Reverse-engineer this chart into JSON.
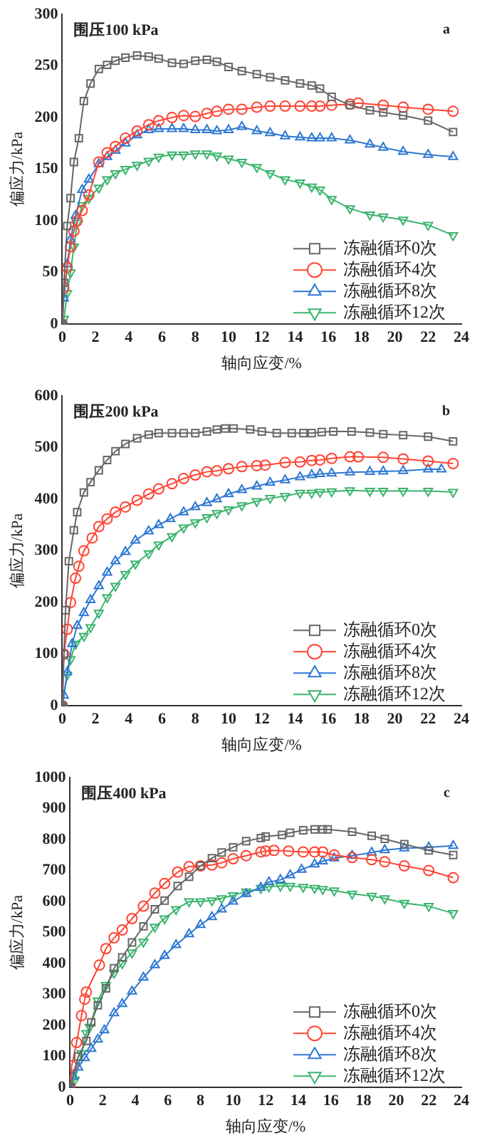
{
  "chart_data": [
    {
      "type": "line",
      "title": "围压100 kPa",
      "annotations": [
        "a"
      ],
      "xlabel": "轴向应变/%",
      "ylabel": "偏应力/kPa",
      "xlim": [
        0,
        24
      ],
      "xticks": [
        0,
        2,
        4,
        6,
        8,
        10,
        12,
        14,
        16,
        18,
        20,
        22,
        24
      ],
      "ylim": [
        0,
        300
      ],
      "yticks": [
        0,
        50,
        100,
        150,
        200,
        250,
        300
      ],
      "grid": false,
      "legend": "bottom right",
      "line_style": "solid",
      "series": [
        {
          "name": "冻融循环0次",
          "color": "#666666",
          "marker": "square",
          "x": [
            0,
            0.1,
            0.3,
            0.5,
            0.7,
            1.0,
            1.3,
            1.7,
            2.2,
            2.7,
            3.2,
            3.8,
            4.5,
            5.2,
            5.8,
            6.6,
            7.3,
            8.0,
            8.7,
            9.3,
            10,
            10.8,
            11.7,
            12.5,
            13.4,
            14.3,
            15.0,
            15.5,
            16.2,
            17.3,
            18.5,
            19.3,
            20.5,
            22,
            23.5
          ],
          "values": [
            0,
            40,
            95,
            122,
            157,
            180,
            216,
            233,
            247,
            251,
            255,
            258,
            260,
            259,
            257,
            253,
            252,
            255,
            256,
            254,
            249,
            245,
            242,
            239,
            236,
            233,
            231,
            228,
            220,
            212,
            207,
            205,
            202,
            197,
            186
          ]
        },
        {
          "name": "冻融循环4次",
          "color": "#ff4433",
          "marker": "circle",
          "x": [
            0,
            0.1,
            0.3,
            0.5,
            0.7,
            0.9,
            1.2,
            1.6,
            2.2,
            2.7,
            3.2,
            3.8,
            4.5,
            5.2,
            5.8,
            6.6,
            7.3,
            8.0,
            8.7,
            9.3,
            10,
            10.8,
            11.7,
            12.5,
            13.4,
            14.3,
            15.0,
            15.5,
            16.2,
            17.3,
            17.8,
            19.3,
            20.5,
            22,
            23.5
          ],
          "values": [
            0,
            35,
            55,
            75,
            90,
            100,
            110,
            125,
            157,
            166,
            172,
            180,
            187,
            193,
            197,
            200,
            202,
            201,
            204,
            206,
            208,
            208,
            210,
            211,
            211,
            211,
            211,
            211,
            212,
            213,
            214,
            212,
            210,
            208,
            206
          ]
        },
        {
          "name": "冻融循环8次",
          "color": "#2e78d2",
          "marker": "triangle",
          "x": [
            0,
            0.1,
            0.3,
            0.5,
            0.8,
            1.2,
            1.6,
            2.2,
            2.7,
            3.2,
            3.8,
            4.5,
            5.2,
            5.8,
            6.6,
            7.3,
            8.0,
            8.7,
            9.3,
            10,
            10.8,
            11.7,
            12.5,
            13.4,
            14.3,
            15.0,
            15.5,
            16.2,
            17.3,
            18.5,
            19.3,
            20.5,
            22,
            23.5
          ],
          "values": [
            0,
            25,
            58,
            82,
            105,
            130,
            140,
            155,
            162,
            168,
            175,
            183,
            188,
            189,
            189,
            189,
            188,
            188,
            187,
            188,
            191,
            187,
            185,
            182,
            181,
            180,
            180,
            180,
            178,
            174,
            171,
            167,
            164,
            162
          ]
        },
        {
          "name": "冻融循环12次",
          "color": "#3cb46e",
          "marker": "triangle-down",
          "x": [
            0,
            0.1,
            0.3,
            0.5,
            0.7,
            0.9,
            1.2,
            1.6,
            2.2,
            2.7,
            3.2,
            3.8,
            4.5,
            5.2,
            5.8,
            6.6,
            7.3,
            8.0,
            8.7,
            9.3,
            10,
            10.8,
            11.7,
            12.5,
            13.4,
            14.3,
            15.0,
            15.5,
            16.2,
            17.3,
            18.5,
            19.3,
            20.5,
            22,
            23.5
          ],
          "values": [
            0,
            5,
            30,
            50,
            75,
            98,
            115,
            122,
            132,
            140,
            146,
            150,
            154,
            158,
            162,
            164,
            164,
            165,
            165,
            163,
            160,
            157,
            152,
            146,
            140,
            137,
            133,
            130,
            121,
            112,
            106,
            104,
            101,
            96,
            86
          ]
        }
      ]
    },
    {
      "type": "line",
      "title": "围压200 kPa",
      "annotations": [
        "b"
      ],
      "xlabel": "轴向应变/%",
      "ylabel": "偏应力/kPa",
      "xlim": [
        0,
        24
      ],
      "xticks": [
        0,
        2,
        4,
        6,
        8,
        10,
        12,
        14,
        16,
        18,
        20,
        22,
        24
      ],
      "ylim": [
        0,
        600
      ],
      "yticks": [
        0,
        100,
        200,
        300,
        400,
        500,
        600
      ],
      "grid": false,
      "legend": "bottom right",
      "line_style": "solid",
      "series": [
        {
          "name": "冻融循环0次",
          "color": "#666666",
          "marker": "square",
          "x": [
            0,
            0.1,
            0.2,
            0.4,
            0.7,
            0.9,
            1.3,
            1.7,
            2.2,
            2.7,
            3.2,
            3.8,
            4.5,
            5.2,
            5.8,
            6.6,
            7.3,
            8.0,
            8.7,
            9.3,
            9.8,
            10.3,
            11.3,
            12,
            12.9,
            13.8,
            14.5,
            15,
            15.6,
            16.3,
            17.4,
            18.5,
            19.3,
            20.5,
            22,
            23.5
          ],
          "values": [
            0,
            100,
            185,
            280,
            340,
            375,
            413,
            433,
            456,
            476,
            493,
            507,
            518,
            525,
            528,
            528,
            528,
            528,
            531,
            535,
            537,
            537,
            535,
            531,
            528,
            528,
            528,
            528,
            530,
            531,
            531,
            529,
            526,
            524,
            521,
            512
          ]
        },
        {
          "name": "冻融循环4次",
          "color": "#ff4433",
          "marker": "circle",
          "x": [
            0,
            0.1,
            0.3,
            0.5,
            0.8,
            1.0,
            1.3,
            1.8,
            2.2,
            2.7,
            3.2,
            3.8,
            4.5,
            5.2,
            5.8,
            6.6,
            7.3,
            8.0,
            8.7,
            9.3,
            10,
            10.8,
            11.7,
            12.2,
            13.4,
            14.3,
            15.0,
            15.5,
            16.2,
            17.3,
            17.8,
            19.3,
            20.5,
            22,
            23.5
          ],
          "values": [
            0,
            100,
            148,
            200,
            247,
            270,
            300,
            325,
            347,
            362,
            375,
            385,
            398,
            410,
            420,
            430,
            440,
            447,
            453,
            455,
            459,
            463,
            465,
            466,
            471,
            472,
            475,
            476,
            479,
            482,
            482,
            481,
            478,
            474,
            469
          ]
        },
        {
          "name": "冻融循环8次",
          "color": "#2e78d2",
          "marker": "triangle",
          "x": [
            0,
            0.1,
            0.3,
            0.6,
            0.9,
            1.3,
            1.7,
            2.2,
            2.7,
            3.2,
            3.8,
            4.4,
            5.2,
            5.8,
            6.5,
            7.3,
            8.0,
            8.7,
            9.3,
            10,
            10.8,
            11.7,
            12.5,
            13.4,
            14.3,
            15.0,
            15.5,
            16.2,
            17.3,
            18.5,
            19.3,
            20.5,
            22,
            22.8
          ],
          "values": [
            0,
            20,
            65,
            120,
            155,
            180,
            205,
            232,
            258,
            280,
            298,
            320,
            338,
            350,
            362,
            375,
            385,
            393,
            400,
            410,
            418,
            425,
            432,
            437,
            443,
            447,
            449,
            450,
            452,
            453,
            454,
            455,
            458,
            458
          ]
        },
        {
          "name": "冻融循环12次",
          "color": "#3cb46e",
          "marker": "triangle-down",
          "x": [
            0,
            0.1,
            0.3,
            0.5,
            0.8,
            1.3,
            1.7,
            2.2,
            2.7,
            3.2,
            3.8,
            4.4,
            5.2,
            5.8,
            6.6,
            7.3,
            8.0,
            8.7,
            9.3,
            10,
            10.8,
            11.7,
            12.5,
            13.4,
            14.3,
            15.0,
            15.5,
            16.2,
            17.3,
            18.5,
            19.3,
            20.5,
            22,
            23.5
          ],
          "values": [
            0,
            null,
            60,
            90,
            120,
            135,
            152,
            180,
            210,
            232,
            255,
            275,
            295,
            312,
            328,
            345,
            355,
            365,
            373,
            380,
            388,
            396,
            402,
            406,
            412,
            412,
            414,
            415,
            417,
            416,
            416,
            416,
            416,
            414
          ]
        }
      ]
    },
    {
      "type": "line",
      "title": "围压400 kPa",
      "annotations": [
        "c"
      ],
      "xlabel": "轴向应变/%",
      "ylabel": "偏应力/kPa",
      "xlim": [
        0,
        24
      ],
      "xticks": [
        0,
        2,
        4,
        6,
        8,
        10,
        12,
        14,
        16,
        18,
        20,
        22,
        24
      ],
      "ylim": [
        0,
        1000
      ],
      "yticks": [
        0,
        100,
        200,
        300,
        400,
        500,
        600,
        700,
        800,
        900,
        1000
      ],
      "grid": false,
      "legend": "bottom right",
      "line_style": "solid",
      "series": [
        {
          "name": "冻融循环0次",
          "color": "#666666",
          "marker": "square",
          "x": [
            0,
            0.5,
            1.0,
            1.3,
            1.7,
            2.2,
            2.7,
            3.2,
            3.8,
            4.5,
            5.2,
            5.8,
            6.6,
            7.3,
            8.0,
            8.7,
            9.3,
            10,
            10.8,
            11.7,
            12.0,
            13.0,
            13.5,
            14.3,
            15.0,
            15.5,
            15.8,
            17.3,
            18.5,
            19.3,
            20.5,
            22,
            23.5
          ],
          "values": [
            0,
            100,
            150,
            210,
            265,
            320,
            385,
            420,
            468,
            520,
            575,
            603,
            650,
            680,
            715,
            740,
            758,
            775,
            795,
            805,
            810,
            815,
            822,
            830,
            833,
            833,
            833,
            825,
            812,
            802,
            785,
            765,
            750
          ]
        },
        {
          "name": "冻融循环4次",
          "color": "#ff4433",
          "marker": "circle",
          "x": [
            0,
            0.1,
            0.4,
            0.7,
            0.9,
            1.0,
            1.8,
            2.2,
            2.7,
            3.2,
            3.8,
            4.5,
            5.2,
            5.8,
            6.6,
            7.3,
            8.0,
            8.7,
            9.3,
            10,
            10.8,
            11.7,
            12,
            12.5,
            13.4,
            14.3,
            15,
            15.5,
            16.2,
            17.3,
            18.5,
            19.3,
            20.5,
            22,
            23.5
          ],
          "values": [
            0,
            70,
            145,
            232,
            285,
            308,
            395,
            448,
            483,
            508,
            545,
            585,
            627,
            658,
            695,
            713,
            715,
            718,
            725,
            738,
            748,
            760,
            763,
            765,
            763,
            760,
            760,
            760,
            750,
            742,
            735,
            728,
            715,
            700,
            677
          ]
        },
        {
          "name": "冻融循环8次",
          "color": "#2e78d2",
          "marker": "triangle",
          "x": [
            0,
            0.2,
            0.5,
            0.9,
            1.3,
            1.7,
            2.1,
            2.7,
            3.2,
            3.8,
            4.5,
            5.2,
            5.8,
            6.5,
            7.3,
            8.0,
            8.7,
            9.3,
            10,
            10.8,
            11.7,
            12.2,
            12.9,
            13.5,
            14.2,
            15,
            15.5,
            16.2,
            17.3,
            18.5,
            19.3,
            20.5,
            22,
            23.5
          ],
          "values": [
            0,
            35,
            65,
            95,
            125,
            155,
            185,
            240,
            270,
            310,
            355,
            395,
            425,
            460,
            495,
            525,
            550,
            575,
            600,
            625,
            645,
            663,
            670,
            685,
            703,
            720,
            730,
            740,
            748,
            758,
            766,
            772,
            775,
            780
          ]
        },
        {
          "name": "冻融循环12次",
          "color": "#3cb46e",
          "marker": "triangle-down",
          "x": [
            0,
            0.3,
            0.5,
            0.7,
            1.0,
            1.2,
            1.7,
            2.2,
            2.7,
            3.2,
            3.8,
            4.5,
            5.2,
            5.8,
            6.5,
            7.3,
            8.0,
            8.7,
            9.3,
            10,
            10.8,
            11.7,
            12.2,
            12.9,
            13.5,
            14.3,
            15.0,
            15.5,
            16.2,
            17.3,
            18.5,
            19.3,
            20.5,
            22,
            23.5
          ],
          "values": [
            0,
            25,
            null,
            110,
            175,
            195,
            280,
            330,
            370,
            400,
            435,
            470,
            518,
            545,
            575,
            600,
            600,
            603,
            610,
            620,
            632,
            643,
            648,
            650,
            650,
            647,
            643,
            640,
            635,
            625,
            618,
            610,
            595,
            585,
            562
          ]
        }
      ]
    }
  ]
}
